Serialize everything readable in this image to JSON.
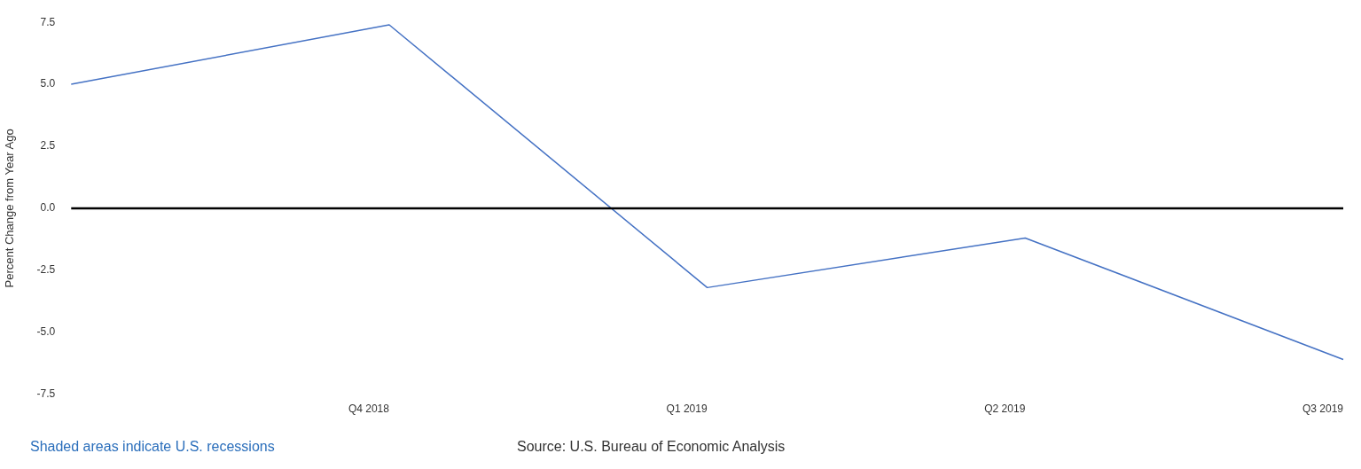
{
  "chart_data": {
    "type": "line",
    "ylabel": "Percent Change from Year Ago",
    "categories": [
      null,
      "Q4 2018",
      "Q1 2019",
      "Q2 2019",
      "Q3 2019"
    ],
    "series": [
      {
        "color": "#4572c4",
        "values": [
          5.0,
          7.4,
          -3.2,
          -1.2,
          -6.1
        ]
      }
    ],
    "ylim": [
      -7.5,
      7.5
    ],
    "yticks": [
      {
        "value": -7.5,
        "label": "-7.5"
      },
      {
        "value": -5,
        "label": "-5.0"
      },
      {
        "value": -2.5,
        "label": "-2.5"
      },
      {
        "value": 0,
        "label": "0.0"
      },
      {
        "value": 2.5,
        "label": "2.5"
      },
      {
        "value": 5,
        "label": "5.0"
      },
      {
        "value": 7.5,
        "label": "7.5"
      }
    ],
    "ref_lines": [
      {
        "axis": "y",
        "value": 0,
        "color": "#000000"
      }
    ],
    "grid": false,
    "legend": false,
    "marker": "none",
    "line_style": "solid",
    "annotations": [
      "Shaded areas indicate U.S. recessions",
      "Source: U.S. Bureau of Economic Analysis"
    ]
  }
}
